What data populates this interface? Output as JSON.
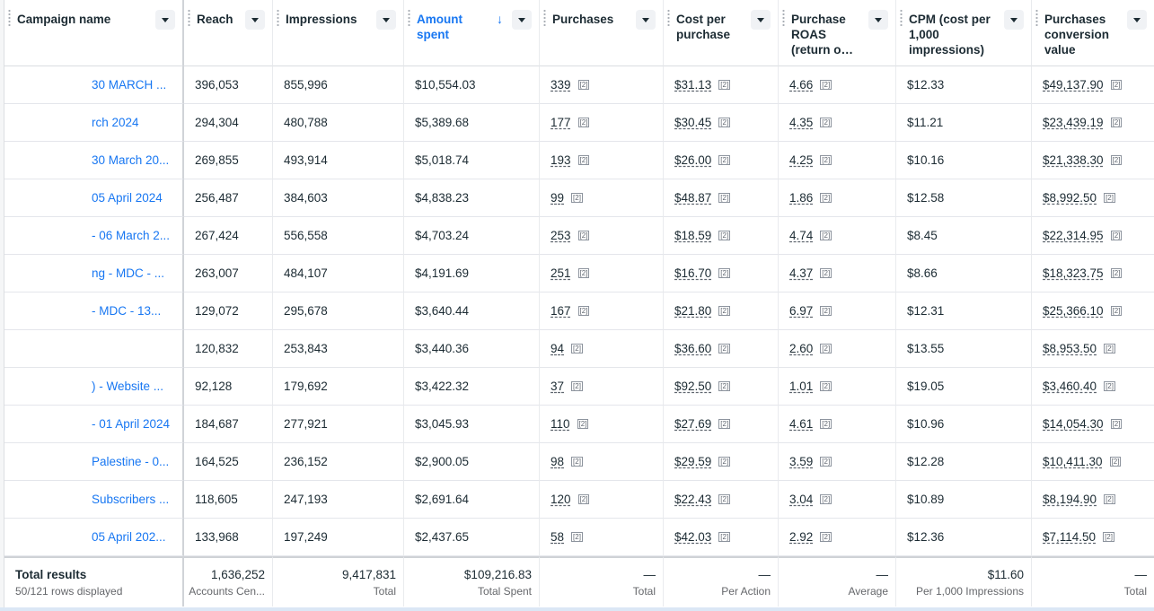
{
  "columns": [
    {
      "label": "Campaign name"
    },
    {
      "label": "Reach"
    },
    {
      "label": "Impressions"
    },
    {
      "label": "Amount spent",
      "sort": "↓"
    },
    {
      "label": "Purchases"
    },
    {
      "label": "Cost per purchase"
    },
    {
      "label": "Purchase ROAS (return o…"
    },
    {
      "label": "CPM (cost per 1,000 impressions)"
    },
    {
      "label": "Purchases conversion value"
    }
  ],
  "footnote_marker": "[2]",
  "rows": [
    {
      "name": "30 MARCH ...",
      "reach": "396,053",
      "impressions": "855,996",
      "spent": "$10,554.03",
      "purchases": "339",
      "cpp": "$31.13",
      "roas": "4.66",
      "cpm": "$12.33",
      "value": "$49,137.90"
    },
    {
      "name": "rch 2024",
      "reach": "294,304",
      "impressions": "480,788",
      "spent": "$5,389.68",
      "purchases": "177",
      "cpp": "$30.45",
      "roas": "4.35",
      "cpm": "$11.21",
      "value": "$23,439.19"
    },
    {
      "name": "30 March 20...",
      "reach": "269,855",
      "impressions": "493,914",
      "spent": "$5,018.74",
      "purchases": "193",
      "cpp": "$26.00",
      "roas": "4.25",
      "cpm": "$10.16",
      "value": "$21,338.30"
    },
    {
      "name": "05 April 2024",
      "reach": "256,487",
      "impressions": "384,603",
      "spent": "$4,838.23",
      "purchases": "99",
      "cpp": "$48.87",
      "roas": "1.86",
      "cpm": "$12.58",
      "value": "$8,992.50"
    },
    {
      "name": "- 06 March 2...",
      "reach": "267,424",
      "impressions": "556,558",
      "spent": "$4,703.24",
      "purchases": "253",
      "cpp": "$18.59",
      "roas": "4.74",
      "cpm": "$8.45",
      "value": "$22,314.95"
    },
    {
      "name": "ng - MDC - ...",
      "reach": "263,007",
      "impressions": "484,107",
      "spent": "$4,191.69",
      "purchases": "251",
      "cpp": "$16.70",
      "roas": "4.37",
      "cpm": "$8.66",
      "value": "$18,323.75"
    },
    {
      "name": "- MDC - 13...",
      "reach": "129,072",
      "impressions": "295,678",
      "spent": "$3,640.44",
      "purchases": "167",
      "cpp": "$21.80",
      "roas": "6.97",
      "cpm": "$12.31",
      "value": "$25,366.10"
    },
    {
      "name": "",
      "reach": "120,832",
      "impressions": "253,843",
      "spent": "$3,440.36",
      "purchases": "94",
      "cpp": "$36.60",
      "roas": "2.60",
      "cpm": "$13.55",
      "value": "$8,953.50"
    },
    {
      "name": ") - Website ...",
      "reach": "92,128",
      "impressions": "179,692",
      "spent": "$3,422.32",
      "purchases": "37",
      "cpp": "$92.50",
      "roas": "1.01",
      "cpm": "$19.05",
      "value": "$3,460.40"
    },
    {
      "name": "- 01 April 2024",
      "reach": "184,687",
      "impressions": "277,921",
      "spent": "$3,045.93",
      "purchases": "110",
      "cpp": "$27.69",
      "roas": "4.61",
      "cpm": "$10.96",
      "value": "$14,054.30"
    },
    {
      "name": "Palestine - 0...",
      "reach": "164,525",
      "impressions": "236,152",
      "spent": "$2,900.05",
      "purchases": "98",
      "cpp": "$29.59",
      "roas": "3.59",
      "cpm": "$12.28",
      "value": "$10,411.30"
    },
    {
      "name": "Subscribers ...",
      "reach": "118,605",
      "impressions": "247,193",
      "spent": "$2,691.64",
      "purchases": "120",
      "cpp": "$22.43",
      "roas": "3.04",
      "cpm": "$10.89",
      "value": "$8,194.90"
    },
    {
      "name": "05 April 202...",
      "reach": "133,968",
      "impressions": "197,249",
      "spent": "$2,437.65",
      "purchases": "58",
      "cpp": "$42.03",
      "roas": "2.92",
      "cpm": "$12.36",
      "value": "$7,114.50"
    }
  ],
  "totals": [
    {
      "top": "Total results",
      "sub": "50/121 rows displayed"
    },
    {
      "top": "1,636,252",
      "sub": "Accounts Cen..."
    },
    {
      "top": "9,417,831",
      "sub": "Total"
    },
    {
      "top": "$109,216.83",
      "sub": "Total Spent"
    },
    {
      "top": "—",
      "sub": "Total"
    },
    {
      "top": "—",
      "sub": "Per Action"
    },
    {
      "top": "—",
      "sub": "Average"
    },
    {
      "top": "$11.60",
      "sub": "Per 1,000 Impressions"
    },
    {
      "top": "—",
      "sub": "Total"
    }
  ]
}
